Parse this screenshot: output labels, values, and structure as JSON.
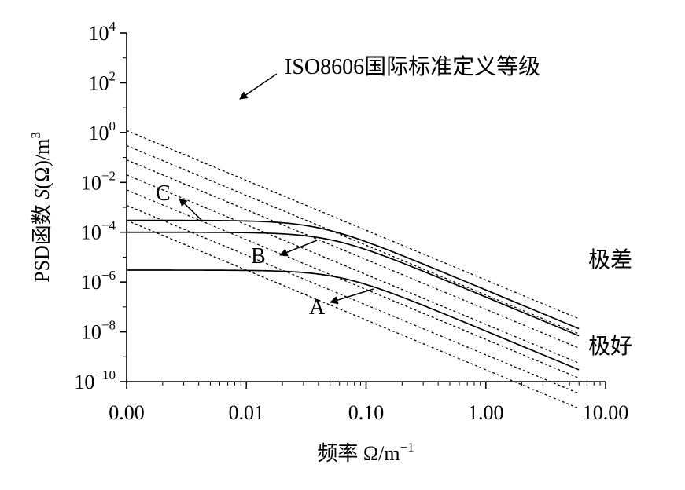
{
  "chart_data": {
    "type": "line",
    "xaxis": {
      "scale": "log",
      "range": [
        0.001,
        10
      ],
      "ticks": [
        0.001,
        0.01,
        0.1,
        1,
        10
      ],
      "tick_labels": [
        "0.00",
        "0.01",
        "0.10",
        "1.00",
        "10.00"
      ],
      "label": "频率 Ω/m",
      "label_sup": "−1"
    },
    "yaxis": {
      "scale": "log",
      "range": [
        1e-10,
        10000.0
      ],
      "ticks": [
        {
          "exp": 4,
          "base": "10",
          "sup": "4"
        },
        {
          "exp": 2,
          "base": "10",
          "sup": "2"
        },
        {
          "exp": 0,
          "base": "10",
          "sup": "0"
        },
        {
          "exp": -2,
          "base": "10",
          "sup": "−2"
        },
        {
          "exp": -4,
          "base": "10",
          "sup": "−4"
        },
        {
          "exp": -6,
          "base": "10",
          "sup": "−6"
        },
        {
          "exp": -8,
          "base": "10",
          "sup": "−8"
        },
        {
          "exp": -10,
          "base": "10",
          "sup": "−10"
        }
      ],
      "label_prefix": "PSD函数 ",
      "label_italic": "S",
      "label_suffix": "(Ω)/m",
      "label_sup": "3"
    },
    "iso_class_lines": {
      "style": "dashed",
      "slope": -2,
      "x_range": [
        0.001,
        6
      ],
      "start_values_at_x_min": [
        1.2,
        0.3,
        0.08,
        0.02,
        0.005,
        0.0012,
        0.0003
      ]
    },
    "series": [
      {
        "name": "C",
        "label_text": "C",
        "plateau": 0.0003,
        "corner": 0.04,
        "x_range": [
          0.001,
          6
        ]
      },
      {
        "name": "B",
        "label_text": "B",
        "plateau": 0.0001,
        "corner": 0.05,
        "x_range": [
          0.001,
          6
        ]
      },
      {
        "name": "A",
        "label_text": "A",
        "plateau": 3e-06,
        "corner": 0.06,
        "x_range": [
          0.001,
          6
        ]
      }
    ],
    "annotations": [
      {
        "id": "iso",
        "text": "ISO8606国际标准定义等级"
      },
      {
        "id": "worst",
        "text": "极差"
      },
      {
        "id": "best",
        "text": "极好"
      }
    ]
  }
}
